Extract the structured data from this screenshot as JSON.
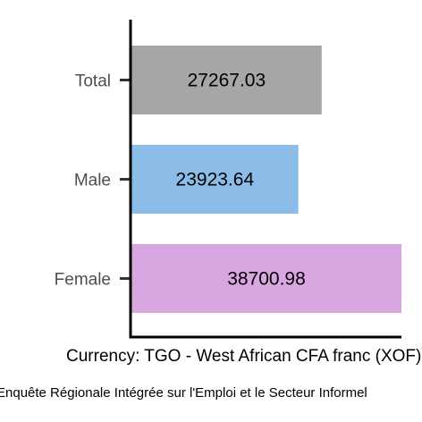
{
  "chart_data": {
    "type": "bar",
    "orientation": "horizontal",
    "categories": [
      "Total",
      "Male",
      "Female"
    ],
    "values": [
      27267.03,
      23923.64,
      38700.98
    ],
    "data_labels": [
      "27267.03",
      "23923.64",
      "38700.98"
    ],
    "colors": [
      "#a6a6a6",
      "#8bbde8",
      "#d8a6e0"
    ],
    "xlabel": "Currency: TGO - West African CFA franc (XOF)",
    "caption": "Enquête Régionale Intégrée sur l'Emploi et le Secteur Informel",
    "xlim": [
      0,
      38700.98
    ],
    "grid": false,
    "legend": "none"
  }
}
